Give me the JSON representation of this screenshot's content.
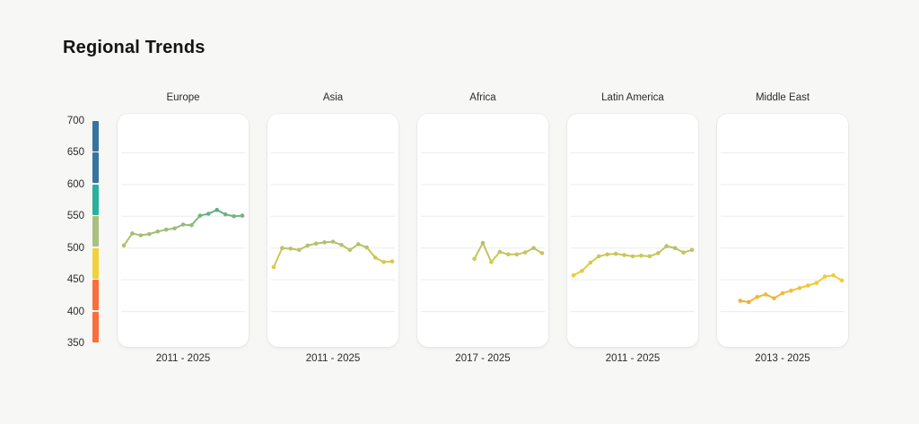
{
  "page": {
    "title": "Regional Trends"
  },
  "y_axis": {
    "ticks": [
      700,
      650,
      600,
      550,
      500,
      450,
      400,
      350
    ],
    "ylim": [
      350,
      700
    ],
    "gridline_ticks": [
      650,
      600,
      550,
      500,
      450,
      400
    ]
  },
  "color_scale": {
    "segments": [
      {
        "from": 650,
        "to": 700,
        "color": "#35749f"
      },
      {
        "from": 600,
        "to": 650,
        "color": "#35749f"
      },
      {
        "from": 550,
        "to": 600,
        "color": "#2bb19b"
      },
      {
        "from": 500,
        "to": 550,
        "color": "#a9c17f"
      },
      {
        "from": 450,
        "to": 500,
        "color": "#f2d03b"
      },
      {
        "from": 400,
        "to": 450,
        "color": "#fb6e3b"
      },
      {
        "from": 350,
        "to": 400,
        "color": "#fb6e3b"
      }
    ],
    "line_color_stops": [
      [
        350,
        "#fb6e3b"
      ],
      [
        405,
        "#f4a43a"
      ],
      [
        450,
        "#f2cd36"
      ],
      [
        480,
        "#d6c94c"
      ],
      [
        505,
        "#b3c26b"
      ],
      [
        535,
        "#98bc78"
      ],
      [
        575,
        "#3aa391"
      ],
      [
        650,
        "#34739e"
      ]
    ]
  },
  "chart_data": [
    {
      "type": "line",
      "title": "Europe",
      "x_label": "2011 - 2025",
      "x_domain": [
        2011,
        2025
      ],
      "ylim": [
        350,
        700
      ],
      "years": [
        2011,
        2012,
        2013,
        2014,
        2015,
        2016,
        2017,
        2018,
        2019,
        2020,
        2021,
        2022,
        2023,
        2024,
        2025
      ],
      "values": [
        504,
        523,
        520,
        522,
        526,
        529,
        531,
        537,
        536,
        551,
        554,
        560,
        553,
        550,
        551
      ]
    },
    {
      "type": "line",
      "title": "Asia",
      "x_label": "2011 - 2025",
      "x_domain": [
        2011,
        2025
      ],
      "ylim": [
        350,
        700
      ],
      "years": [
        2011,
        2012,
        2013,
        2014,
        2015,
        2016,
        2017,
        2018,
        2019,
        2020,
        2021,
        2022,
        2023,
        2024,
        2025
      ],
      "values": [
        470,
        500,
        499,
        497,
        504,
        507,
        509,
        510,
        505,
        497,
        506,
        501,
        485,
        478,
        479
      ]
    },
    {
      "type": "line",
      "title": "Africa",
      "x_label": "2017 - 2025",
      "x_domain": [
        2011,
        2025
      ],
      "ylim": [
        350,
        700
      ],
      "years": [
        2017,
        2018,
        2019,
        2020,
        2021,
        2022,
        2023,
        2024,
        2025
      ],
      "values": [
        483,
        508,
        478,
        494,
        490,
        490,
        493,
        500,
        492
      ]
    },
    {
      "type": "line",
      "title": "Latin America",
      "x_label": "2011 - 2025",
      "x_domain": [
        2011,
        2025
      ],
      "ylim": [
        350,
        700
      ],
      "years": [
        2011,
        2012,
        2013,
        2014,
        2015,
        2016,
        2017,
        2018,
        2019,
        2020,
        2021,
        2022,
        2023,
        2024,
        2025
      ],
      "values": [
        457,
        464,
        477,
        487,
        490,
        491,
        489,
        487,
        488,
        487,
        492,
        503,
        500,
        493,
        497
      ]
    },
    {
      "type": "line",
      "title": "Middle East",
      "x_label": "2013 - 2025",
      "x_domain": [
        2011,
        2025
      ],
      "ylim": [
        350,
        700
      ],
      "years": [
        2013,
        2014,
        2015,
        2016,
        2017,
        2018,
        2019,
        2020,
        2021,
        2022,
        2023,
        2024,
        2025
      ],
      "values": [
        417,
        415,
        423,
        427,
        421,
        429,
        433,
        437,
        441,
        445,
        455,
        457,
        449
      ]
    }
  ]
}
